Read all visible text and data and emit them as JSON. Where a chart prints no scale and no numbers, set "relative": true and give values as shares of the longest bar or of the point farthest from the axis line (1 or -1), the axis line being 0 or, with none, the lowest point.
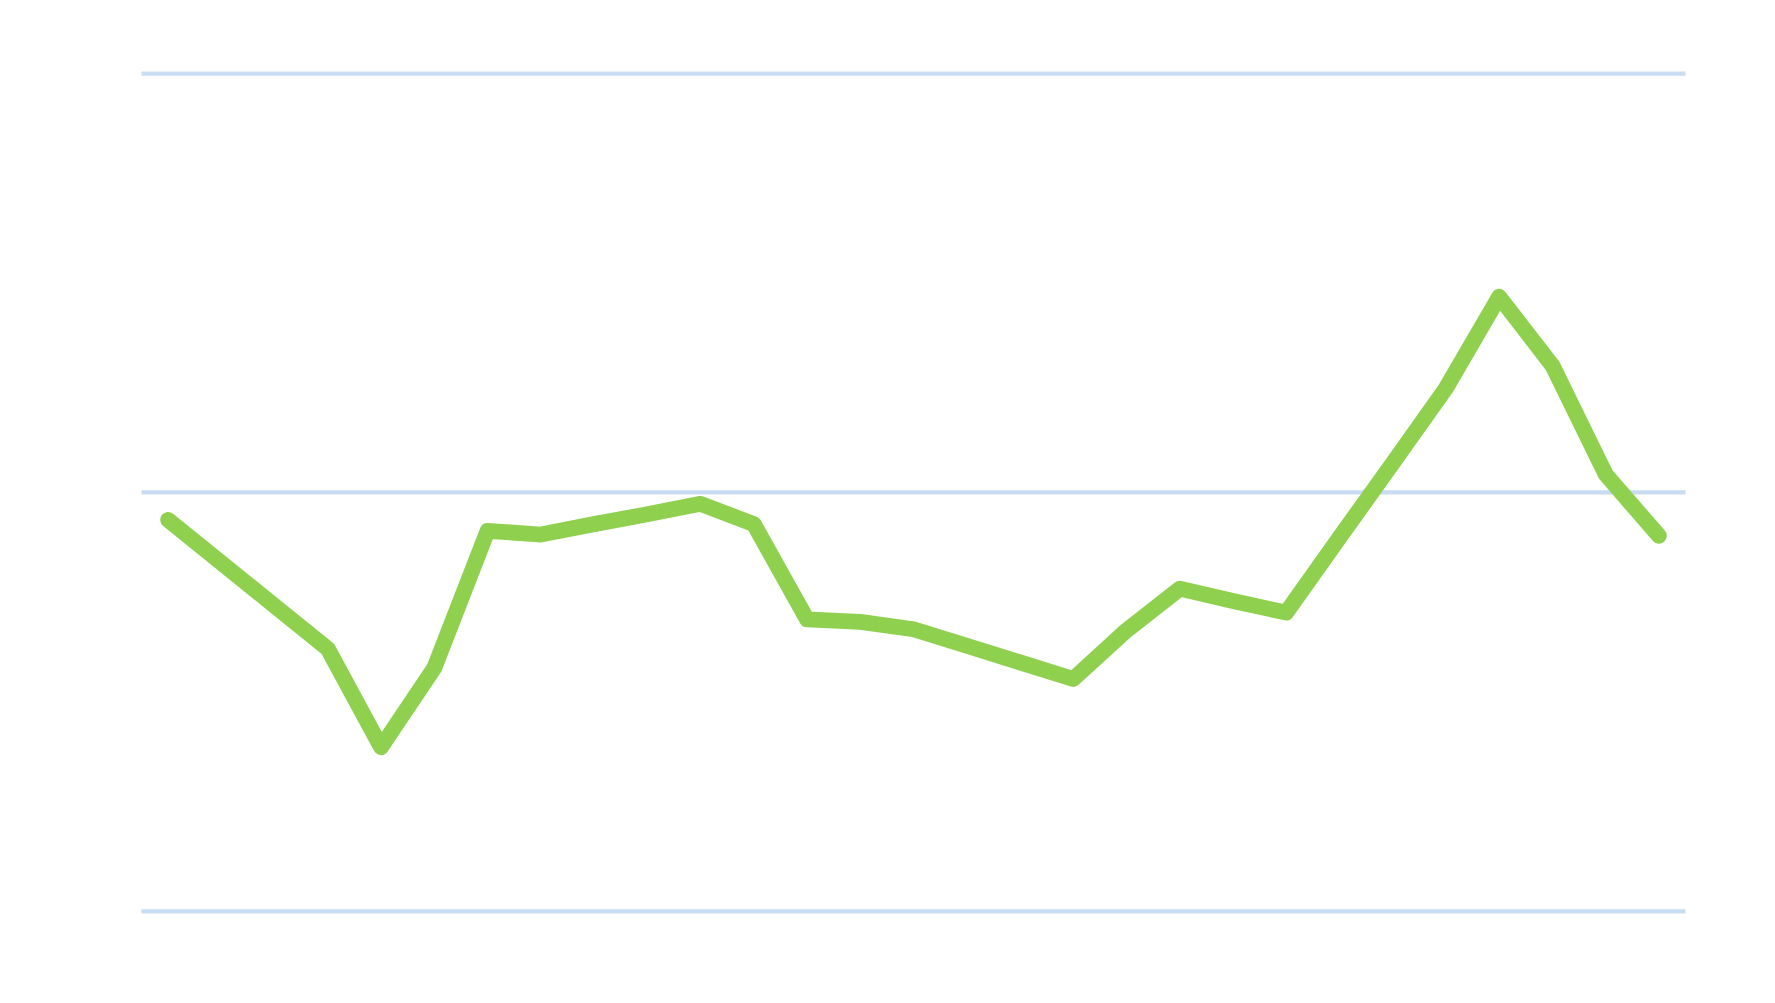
{
  "chart_data": {
    "type": "line",
    "relative": true,
    "categories": [
      null,
      null,
      null,
      null,
      null,
      null,
      null,
      null,
      null,
      null,
      null,
      null,
      null,
      null,
      null,
      null,
      null,
      null,
      null,
      null,
      null,
      null,
      null,
      null,
      null,
      null,
      null,
      null,
      null
    ],
    "ref_lines": [
      {
        "axis": "y",
        "value": 0,
        "color": "#c9ddf2"
      },
      {
        "axis": "y",
        "value": 0.6815,
        "color": "#c9ddf2"
      },
      {
        "axis": "y",
        "value": 1.363,
        "color": "#c9ddf2"
      }
    ],
    "series": [
      {
        "color": "#8fd14f",
        "values": [
          0.637,
          0.567,
          0.497,
          0.427,
          0.267,
          0.396,
          0.619,
          0.613,
          0.63,
          0.646,
          0.663,
          0.63,
          0.475,
          0.471,
          0.459,
          0.432,
          0.405,
          0.378,
          0.457,
          0.525,
          0.505,
          0.486,
          0.608,
          0.729,
          0.851,
          1,
          0.888,
          0.711,
          0.611
        ]
      }
    ]
  }
}
